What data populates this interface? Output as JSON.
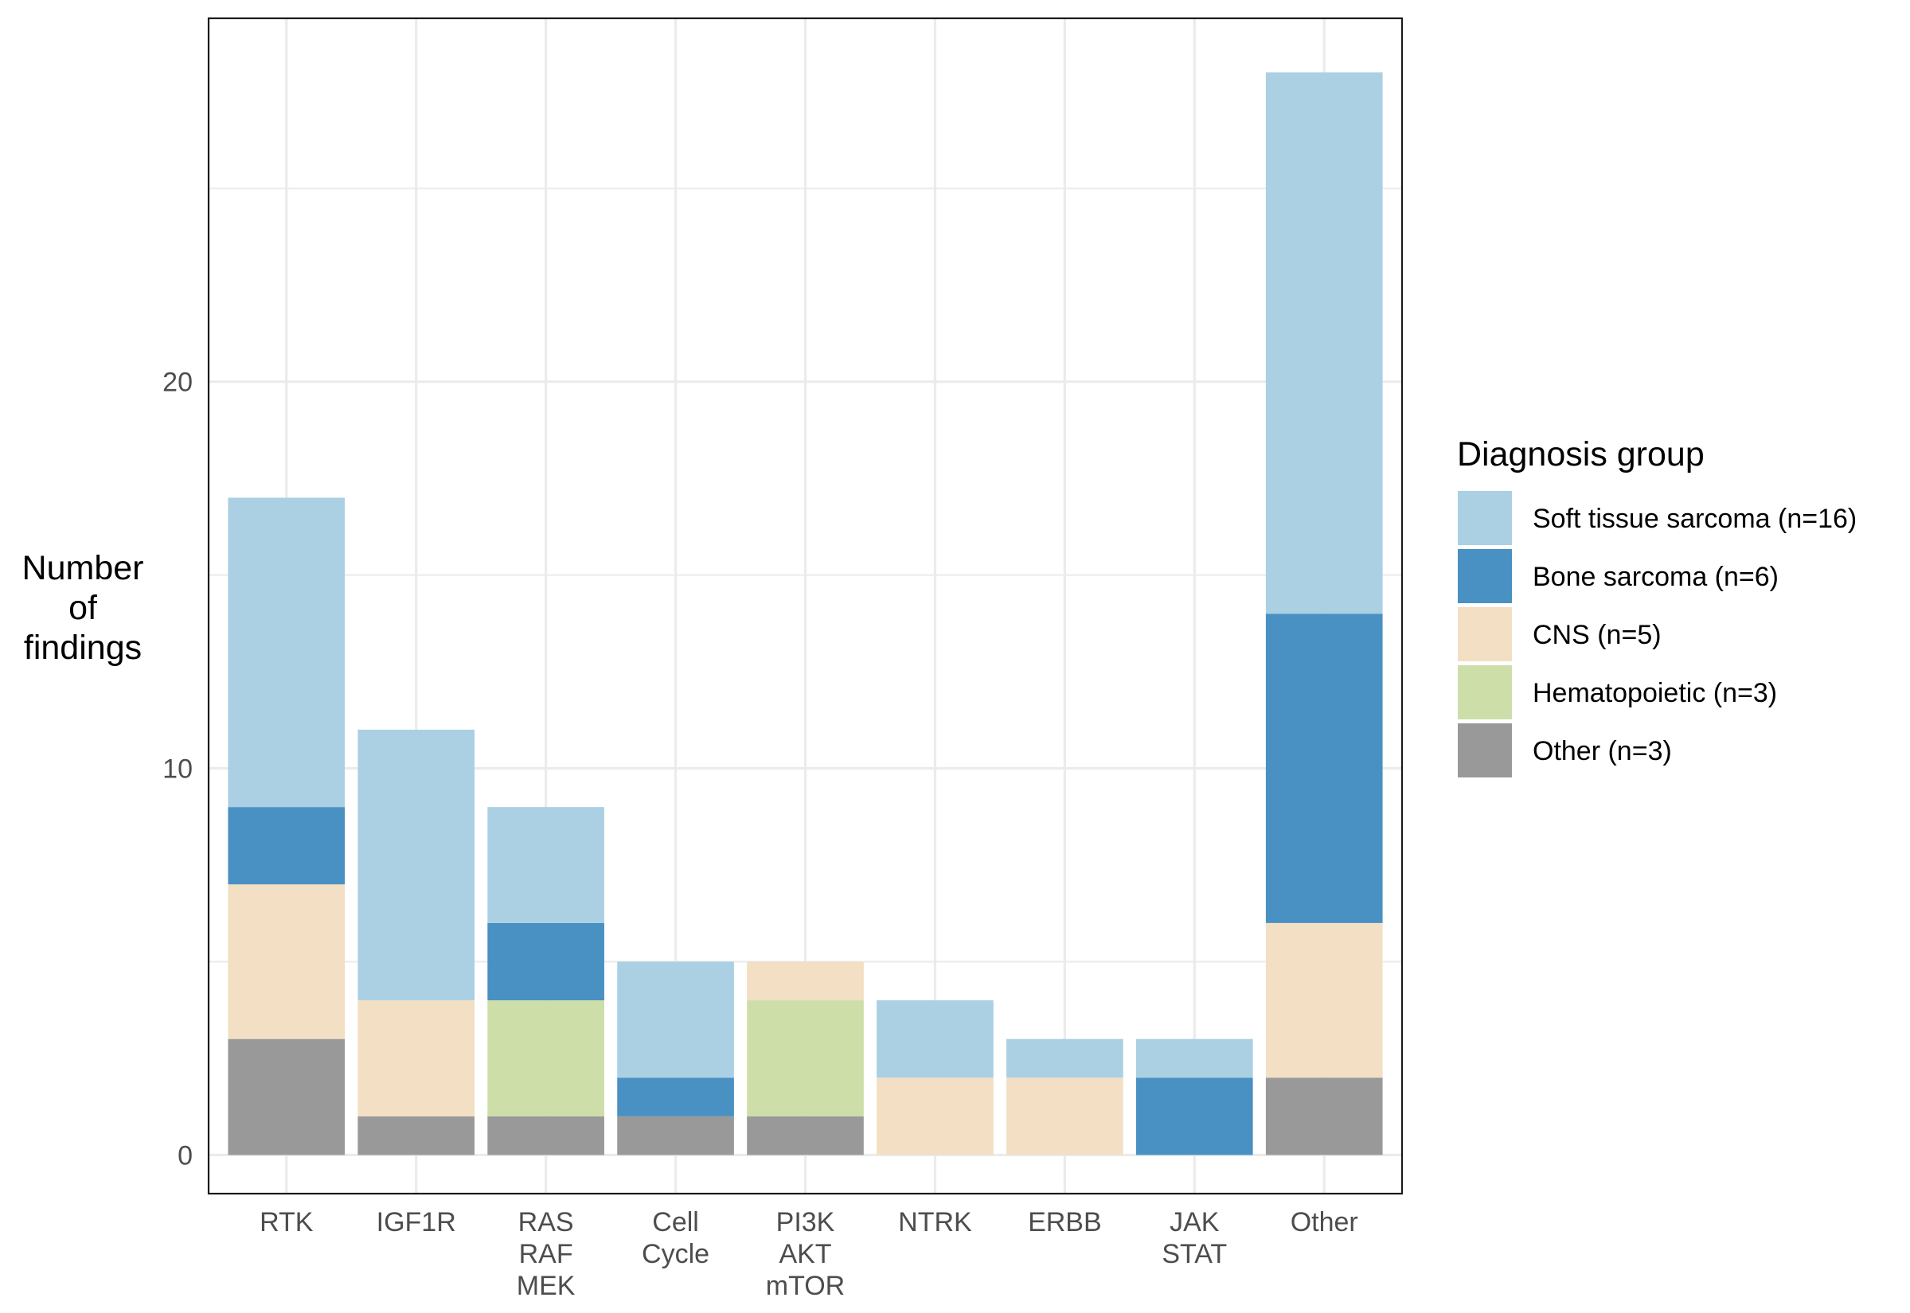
{
  "chart_data": {
    "type": "bar",
    "stacked": true,
    "categories": [
      [
        "RTK"
      ],
      [
        "IGF1R"
      ],
      [
        "RAS",
        "RAF",
        "MEK"
      ],
      [
        "Cell",
        "Cycle"
      ],
      [
        "PI3K",
        "AKT",
        "mTOR"
      ],
      [
        "NTRK"
      ],
      [
        "ERBB"
      ],
      [
        "JAK",
        "STAT"
      ],
      [
        "Other"
      ]
    ],
    "series": [
      {
        "name": "Other (n=3)",
        "color": "#999999",
        "values": [
          3,
          1,
          1,
          1,
          1,
          0,
          0,
          0,
          2
        ]
      },
      {
        "name": "Hematopoietic (n=3)",
        "color": "#cddea9",
        "values": [
          0,
          0,
          3,
          0,
          3,
          0,
          0,
          0,
          0
        ]
      },
      {
        "name": "CNS (n=5)",
        "color": "#f2dfc4",
        "values": [
          4,
          3,
          0,
          0,
          1,
          2,
          2,
          0,
          4
        ]
      },
      {
        "name": "Bone sarcoma (n=6)",
        "color": "#4990c3",
        "values": [
          2,
          0,
          2,
          1,
          0,
          0,
          0,
          2,
          8
        ]
      },
      {
        "name": "Soft tissue sarcoma (n=16)",
        "color": "#abcfe3",
        "values": [
          8,
          7,
          3,
          3,
          0,
          2,
          1,
          1,
          14
        ]
      }
    ],
    "ylabel": [
      "Number",
      "of",
      "findings"
    ],
    "xlabel": "",
    "ylim": [
      -1,
      29.4
    ],
    "yticks": [
      0,
      10,
      20
    ],
    "ylabel_orientation": "horizontal",
    "grid": true,
    "legend": {
      "title": "Diagnosis group",
      "placement": "right",
      "order": [
        "Soft tissue sarcoma (n=16)",
        "Bone sarcoma (n=6)",
        "CNS (n=5)",
        "Hematopoietic (n=3)",
        "Other (n=3)"
      ]
    }
  }
}
